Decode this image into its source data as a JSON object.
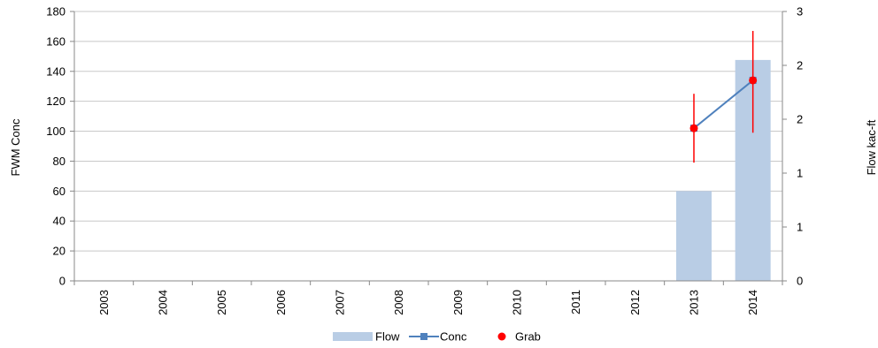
{
  "chart_data": {
    "type": "bar",
    "categories": [
      "2003",
      "2004",
      "2005",
      "2006",
      "2007",
      "2008",
      "2009",
      "2010",
      "2011",
      "2012",
      "2013",
      "2014"
    ],
    "ylabel": "FWM Conc",
    "y2label": "Flow kac-ft",
    "ylim": [
      0,
      180
    ],
    "y_ticks": [
      "0",
      "20",
      "40",
      "60",
      "80",
      "100",
      "120",
      "140",
      "160",
      "180"
    ],
    "y2lim": [
      0,
      3
    ],
    "y2_ticks": [
      "0",
      "1",
      "1",
      "2",
      "2",
      "3"
    ],
    "grid": true,
    "legend_position": "bottom",
    "series": [
      {
        "name": "Flow",
        "type": "bar",
        "axis": "right",
        "color": "#b9cde5",
        "values": [
          null,
          null,
          null,
          null,
          null,
          null,
          null,
          null,
          null,
          null,
          1.0,
          2.46
        ]
      },
      {
        "name": "Conc",
        "type": "line",
        "axis": "left",
        "color": "#4f81bd",
        "values": [
          null,
          null,
          null,
          null,
          null,
          null,
          null,
          null,
          null,
          null,
          102,
          134
        ]
      },
      {
        "name": "Grab",
        "type": "scatter",
        "axis": "left",
        "color": "#ff0000",
        "values": [
          null,
          null,
          null,
          null,
          null,
          null,
          null,
          null,
          null,
          null,
          102,
          134
        ],
        "error_low": [
          null,
          null,
          null,
          null,
          null,
          null,
          null,
          null,
          null,
          null,
          79,
          99
        ],
        "error_high": [
          null,
          null,
          null,
          null,
          null,
          null,
          null,
          null,
          null,
          null,
          125,
          167
        ]
      }
    ]
  }
}
